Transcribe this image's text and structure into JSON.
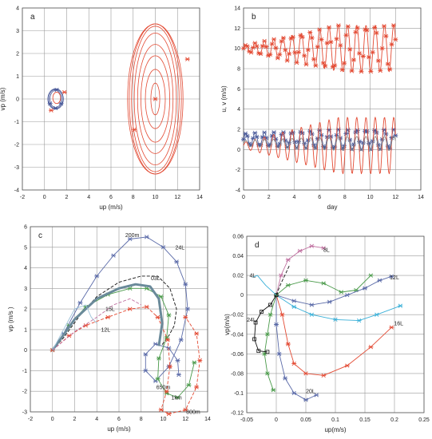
{
  "chart_data": [
    {
      "panel": "a",
      "type": "line",
      "xlabel": "up (m/s)",
      "ylabel": "vp (m/s)",
      "xlim": [
        -2,
        14
      ],
      "ylim": [
        -4,
        4
      ],
      "xticks": [
        -2,
        0,
        2,
        4,
        6,
        8,
        10,
        12,
        14
      ],
      "yticks": [
        -4,
        -3,
        -2,
        -1,
        0,
        1,
        2,
        3,
        4
      ],
      "grid": true,
      "series": [
        {
          "color": "#4a5a9a",
          "kind": "loops",
          "center": [
            1.0,
            0.0
          ],
          "radii": [
            [
              0.5,
              0.38
            ],
            [
              0.62,
              0.42
            ],
            [
              0.7,
              0.45
            ]
          ],
          "markers": [
            [
              1.1,
              0.4
            ],
            [
              0.5,
              -0.2
            ],
            [
              1.5,
              -0.2
            ],
            [
              1.0,
              -0.4
            ]
          ]
        },
        {
          "color": "#e34a33",
          "kind": "loops",
          "center": [
            10.0,
            0.0
          ],
          "radii": [
            [
              0.4,
              0.7
            ],
            [
              0.9,
              1.3
            ],
            [
              1.3,
              1.9
            ],
            [
              1.6,
              2.4
            ],
            [
              1.9,
              2.9
            ],
            [
              2.15,
              3.2
            ],
            [
              2.35,
              3.3
            ],
            [
              2.5,
              3.3
            ]
          ],
          "markers": [
            [
              10.0,
              0.0
            ],
            [
              12.9,
              1.75
            ],
            [
              8.1,
              -1.35
            ]
          ]
        },
        {
          "color": "#e34a33",
          "kind": "loops",
          "center": [
            1.1,
            0.05
          ],
          "radii": [
            [
              0.35,
              0.25
            ]
          ],
          "markers": [
            [
              0.6,
              -0.5
            ],
            [
              1.8,
              0.3
            ]
          ]
        }
      ]
    },
    {
      "panel": "b",
      "type": "line",
      "xlabel": "day",
      "ylabel": "u, v (m/s)",
      "xlim": [
        0,
        14
      ],
      "ylim": [
        -4,
        14
      ],
      "xticks": [
        0,
        2,
        4,
        6,
        8,
        10,
        12,
        14
      ],
      "yticks": [
        -4,
        -2,
        0,
        2,
        4,
        6,
        8,
        10,
        12,
        14
      ],
      "grid": true,
      "series": [
        {
          "color": "#e34a33",
          "marker": "x",
          "mean": 10.0,
          "amp_start": 0.3,
          "amp_end": 2.3,
          "period": 0.73,
          "xrange": [
            0,
            12
          ]
        },
        {
          "color": "#4a5a9a",
          "marker": "x",
          "mean": 1.0,
          "amp_start": 0.6,
          "amp_end": 1.0,
          "period": 0.73,
          "xrange": [
            0,
            12
          ]
        },
        {
          "color": "#e34a33",
          "marker": "none",
          "mean": 0.4,
          "amp_start": 0.3,
          "amp_end": 2.8,
          "period": 0.73,
          "xrange": [
            0,
            12
          ]
        },
        {
          "color": "#888888",
          "marker": "none",
          "mean": 0.6,
          "amp_start": 0.3,
          "amp_end": 0.7,
          "period": 0.73,
          "xrange": [
            0,
            12
          ]
        }
      ]
    },
    {
      "panel": "c",
      "type": "line",
      "xlabel": "up (m/s)",
      "ylabel": "vp (m/s )",
      "xlim": [
        -2,
        14
      ],
      "ylim": [
        -3,
        6
      ],
      "xticks": [
        -2,
        0,
        2,
        4,
        6,
        8,
        10,
        12,
        14
      ],
      "yticks": [
        -3,
        -2,
        -1,
        0,
        1,
        2,
        3,
        4,
        5,
        6
      ],
      "grid": true,
      "annotations": [
        {
          "text": "200m",
          "x": 7.2,
          "y": 5.5
        },
        {
          "text": "24L",
          "x": 11.5,
          "y": 4.9
        },
        {
          "text": "03L",
          "x": 9.3,
          "y": 3.4
        },
        {
          "text": "15L",
          "x": 5.2,
          "y": 1.9
        },
        {
          "text": "12L",
          "x": 4.8,
          "y": 0.9
        },
        {
          "text": "650m",
          "x": 10.0,
          "y": -1.9
        },
        {
          "text": "1km",
          "x": 11.2,
          "y": -2.4
        },
        {
          "text": "800m",
          "x": 12.7,
          "y": -3.1
        }
      ],
      "series": [
        {
          "color": "#5a6aa8",
          "marker": "x",
          "points": [
            [
              0,
              0
            ],
            [
              1,
              0.8
            ],
            [
              2.5,
              2.3
            ],
            [
              4,
              3.6
            ],
            [
              5.5,
              4.6
            ],
            [
              7,
              5.4
            ],
            [
              8.5,
              5.5
            ],
            [
              10,
              5.0
            ],
            [
              11.2,
              4.3
            ],
            [
              12,
              3.2
            ],
            [
              12.2,
              2.0
            ],
            [
              11.6,
              0.5
            ],
            [
              10.5,
              -0.8
            ],
            [
              9.3,
              -1.5
            ],
            [
              8.4,
              -1.0
            ],
            [
              8.4,
              -0.2
            ],
            [
              9.3,
              0.3
            ],
            [
              10.5,
              0.1
            ],
            [
              11.3,
              -0.5
            ],
            [
              11.4,
              -1.2
            ]
          ]
        },
        {
          "color": "#111111",
          "marker": "none",
          "dashed": true,
          "points": [
            [
              0,
              0
            ],
            [
              1,
              0.6
            ],
            [
              2.5,
              1.7
            ],
            [
              4,
              2.6
            ],
            [
              6,
              3.3
            ],
            [
              8,
              3.6
            ],
            [
              9.5,
              3.6
            ],
            [
              10.6,
              3.0
            ],
            [
              11.2,
              2.0
            ],
            [
              11.0,
              1.2
            ],
            [
              10.5,
              0.7
            ],
            [
              9.8,
              0.2
            ]
          ]
        },
        {
          "color": "#4a9a4a",
          "marker": "x",
          "points": [
            [
              0,
              0
            ],
            [
              1.5,
              1.2
            ],
            [
              3,
              2.1
            ],
            [
              5,
              2.7
            ],
            [
              7,
              3.0
            ],
            [
              8.5,
              3.0
            ],
            [
              9.8,
              2.6
            ],
            [
              10.5,
              1.7
            ],
            [
              10.3,
              0.6
            ],
            [
              9.6,
              -0.4
            ],
            [
              9.5,
              -1.4
            ],
            [
              10.3,
              -2.1
            ],
            [
              11.3,
              -2.3
            ],
            [
              12.3,
              -1.7
            ],
            [
              12.8,
              -0.6
            ]
          ]
        },
        {
          "color": "#e34a33",
          "marker": "x",
          "dashed": true,
          "points": [
            [
              0,
              0
            ],
            [
              1.5,
              0.7
            ],
            [
              3,
              1.2
            ],
            [
              5,
              1.6
            ],
            [
              7,
              2.0
            ],
            [
              8.5,
              2.1
            ],
            [
              9.5,
              1.6
            ],
            [
              10.4,
              0.5
            ],
            [
              10.6,
              -0.8
            ],
            [
              10.3,
              -2.0
            ],
            [
              9.8,
              -2.9
            ],
            [
              10.5,
              -3.1
            ],
            [
              12.0,
              -2.9
            ],
            [
              13.0,
              -1.8
            ],
            [
              13.3,
              -0.5
            ],
            [
              13.0,
              0.8
            ],
            [
              12.0,
              1.6
            ]
          ]
        },
        {
          "color": "#6a8a9a",
          "marker": "none",
          "width": 3,
          "points": [
            [
              0,
              0
            ],
            [
              2,
              1.5
            ],
            [
              4,
              2.5
            ],
            [
              6,
              3.0
            ],
            [
              7.5,
              3.2
            ],
            [
              8.8,
              3.1
            ],
            [
              9.6,
              2.5
            ],
            [
              9.9,
              1.3
            ],
            [
              9.6,
              0.2
            ]
          ]
        },
        {
          "color": "#9ac0d8",
          "marker": "none",
          "points": [
            [
              0,
              0
            ],
            [
              1.0,
              1.0
            ],
            [
              2.0,
              2.0
            ],
            [
              3.0,
              2.2
            ],
            [
              3.5,
              1.6
            ],
            [
              4.0,
              1.3
            ]
          ]
        },
        {
          "color": "#c070a0",
          "marker": "none",
          "dashed": true,
          "points": [
            [
              0,
              0
            ],
            [
              2,
              0.9
            ],
            [
              4,
              1.6
            ],
            [
              5.5,
              2.2
            ],
            [
              7.0,
              2.5
            ],
            [
              8.0,
              2.2
            ]
          ]
        }
      ]
    },
    {
      "panel": "d",
      "type": "line",
      "xlabel": "up(m/s)",
      "ylabel": "vp(m/s)",
      "xlim": [
        -0.05,
        0.25
      ],
      "ylim": [
        -0.12,
        0.06
      ],
      "xticks": [
        -0.05,
        0,
        0.05,
        0.1,
        0.15,
        0.2,
        0.25
      ],
      "ytick_labels": [
        "0.06",
        "0.04",
        "0.02",
        "0",
        "-0.02",
        "-0.04",
        "-0.06",
        "-0.08",
        "-0.1",
        "-0.12"
      ],
      "yticks": [
        0.06,
        0.04,
        0.02,
        0,
        -0.02,
        -0.04,
        -0.06,
        -0.08,
        -0.1,
        -0.12
      ],
      "grid": true,
      "annotations": [
        {
          "text": "8L",
          "x": 0.085,
          "y": 0.044
        },
        {
          "text": "12L",
          "x": 0.2,
          "y": 0.016
        },
        {
          "text": "16L",
          "x": 0.207,
          "y": -0.031
        },
        {
          "text": "20L",
          "x": 0.058,
          "y": -0.1
        },
        {
          "text": "24L",
          "x": -0.042,
          "y": -0.027
        },
        {
          "text": "4L",
          "x": -0.04,
          "y": 0.018
        }
      ],
      "series": [
        {
          "color": "#c070a0",
          "marker": "x",
          "points": [
            [
              0,
              0
            ],
            [
              0.008,
              0.02
            ],
            [
              0.02,
              0.036
            ],
            [
              0.04,
              0.045
            ],
            [
              0.06,
              0.05
            ],
            [
              0.08,
              0.048
            ]
          ]
        },
        {
          "color": "#4a9a4a",
          "marker": "x",
          "points": [
            [
              0,
              0
            ],
            [
              0.02,
              0.01
            ],
            [
              0.05,
              0.015
            ],
            [
              0.08,
              0.012
            ],
            [
              0.11,
              0.003
            ],
            [
              0.135,
              0.005
            ],
            [
              0.16,
              0.02
            ]
          ]
        },
        {
          "color": "#5a6aa8",
          "marker": "x",
          "points": [
            [
              0,
              0
            ],
            [
              0.03,
              -0.006
            ],
            [
              0.06,
              -0.01
            ],
            [
              0.09,
              -0.007
            ],
            [
              0.12,
              0.0
            ],
            [
              0.15,
              0.007
            ],
            [
              0.175,
              0.015
            ],
            [
              0.195,
              0.019
            ]
          ]
        },
        {
          "color": "#3ab0d8",
          "marker": "x",
          "points": [
            [
              0,
              0
            ],
            [
              0.03,
              -0.012
            ],
            [
              0.06,
              -0.02
            ],
            [
              0.1,
              -0.025
            ],
            [
              0.14,
              -0.026
            ],
            [
              0.17,
              -0.02
            ],
            [
              0.21,
              -0.011
            ]
          ]
        },
        {
          "color": "#e34a33",
          "marker": "x",
          "points": [
            [
              0,
              0
            ],
            [
              0.01,
              -0.02
            ],
            [
              0.02,
              -0.05
            ],
            [
              0.03,
              -0.07
            ],
            [
              0.05,
              -0.08
            ],
            [
              0.08,
              -0.082
            ],
            [
              0.12,
              -0.072
            ],
            [
              0.16,
              -0.053
            ],
            [
              0.195,
              -0.033
            ]
          ]
        },
        {
          "color": "#5a6aa8",
          "marker": "x",
          "points": [
            [
              0,
              0
            ],
            [
              0.0,
              -0.03
            ],
            [
              0.005,
              -0.06
            ],
            [
              0.015,
              -0.085
            ],
            [
              0.03,
              -0.1
            ],
            [
              0.05,
              -0.107
            ],
            [
              0.068,
              -0.102
            ]
          ]
        },
        {
          "color": "#4a9a4a",
          "marker": "x",
          "points": [
            [
              0,
              0
            ],
            [
              -0.01,
              -0.02
            ],
            [
              -0.015,
              -0.04
            ],
            [
              -0.02,
              -0.06
            ],
            [
              -0.015,
              -0.08
            ],
            [
              -0.005,
              -0.097
            ]
          ]
        },
        {
          "color": "#111111",
          "marker": "square",
          "points": [
            [
              0,
              0
            ],
            [
              -0.01,
              -0.01
            ],
            [
              -0.025,
              -0.017
            ],
            [
              -0.035,
              -0.028
            ],
            [
              -0.037,
              -0.045
            ],
            [
              -0.03,
              -0.057
            ],
            [
              -0.015,
              -0.058
            ]
          ]
        },
        {
          "color": "#3ab0d8",
          "marker": "none",
          "points": [
            [
              0,
              0
            ],
            [
              -0.018,
              0.01
            ],
            [
              -0.032,
              0.02
            ],
            [
              -0.04,
              0.018
            ]
          ]
        },
        {
          "color": "#111111",
          "marker": "none",
          "dashed": true,
          "points": [
            [
              0,
              0
            ],
            [
              0.008,
              0.012
            ],
            [
              0.016,
              0.022
            ],
            [
              0.022,
              0.03
            ]
          ]
        }
      ]
    }
  ]
}
